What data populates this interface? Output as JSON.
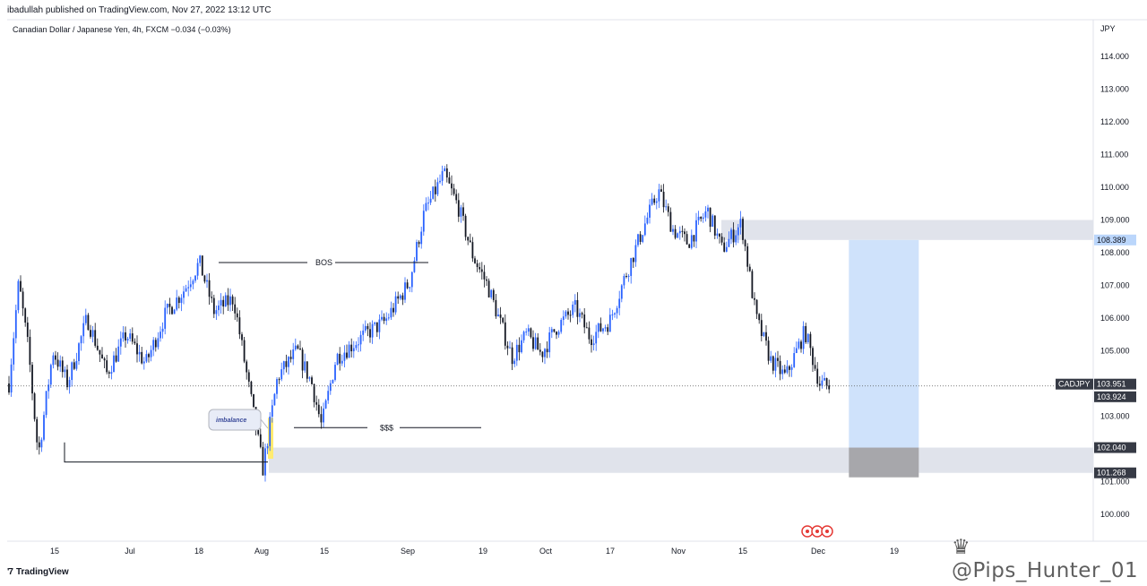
{
  "header": {
    "published": "ibadullah published on TradingView.com, Nov 27, 2022 13:12 UTC",
    "symbol": "Canadian Dollar / Japanese Yen, 4h, FXCM",
    "change": "−0.034 (−0.03%)"
  },
  "footer": {
    "brand": "TradingView",
    "logo": "'7"
  },
  "watermark": "♛ @Pips_Hunter_01",
  "colors": {
    "candle": "#2962ff",
    "candle_down": "#131722",
    "zone": "#e0e3eb",
    "target_box": "#cfe2fb",
    "stop_box": "#a7a7ab",
    "imbalance": "#ffeb70",
    "tag_dark": "#363a45",
    "tag_blue": "#bbd6fb"
  },
  "chart_data": {
    "type": "candlestick",
    "currency_label": "JPY",
    "y_ticks": [
      "114.000",
      "113.000",
      "112.000",
      "111.000",
      "110.000",
      "109.000",
      "108.000",
      "107.000",
      "106.000",
      "105.000",
      "104.000",
      "103.000",
      "102.000",
      "101.000",
      "100.000"
    ],
    "x_ticks": [
      "15",
      "Jul",
      "18",
      "Aug",
      "15",
      "Sep",
      "19",
      "Oct",
      "17",
      "Nov",
      "15",
      "Dec",
      "19"
    ],
    "ylim": [
      99.5,
      114.8
    ],
    "price_path": [
      [
        "Jun 10",
        104.0
      ],
      [
        "Jun 12",
        107.1
      ],
      [
        "Jun 14",
        105.0
      ],
      [
        "Jun 16",
        101.8
      ],
      [
        "Jun 19",
        105.0
      ],
      [
        "Jun 22",
        104.0
      ],
      [
        "Jun 26",
        106.0
      ],
      [
        "Jun 30",
        104.3
      ],
      [
        "Jul 4",
        105.5
      ],
      [
        "Jul 8",
        104.6
      ],
      [
        "Jul 12",
        106.1
      ],
      [
        "Jul 16",
        106.9
      ],
      [
        "Jul 19",
        107.7
      ],
      [
        "Jul 22",
        106.2
      ],
      [
        "Jul 26",
        106.6
      ],
      [
        "Jul 29",
        104.0
      ],
      [
        "Aug 1",
        101.4
      ],
      [
        "Aug 4",
        104.2
      ],
      [
        "Aug 8",
        105.0
      ],
      [
        "Aug 11",
        104.0
      ],
      [
        "Aug 13",
        102.7
      ],
      [
        "Aug 16",
        104.8
      ],
      [
        "Aug 22",
        105.5
      ],
      [
        "Aug 26",
        105.9
      ],
      [
        "Aug 31",
        107.1
      ],
      [
        "Sep 3",
        109.2
      ],
      [
        "Sep 7",
        110.4
      ],
      [
        "Sep 10",
        109.4
      ],
      [
        "Sep 13",
        107.9
      ],
      [
        "Sep 16",
        107.0
      ],
      [
        "Sep 21",
        104.8
      ],
      [
        "Sep 24",
        105.5
      ],
      [
        "Sep 27",
        104.9
      ],
      [
        "Sep 30",
        105.7
      ],
      [
        "Oct 4",
        106.3
      ],
      [
        "Oct 7",
        105.4
      ],
      [
        "Oct 11",
        105.9
      ],
      [
        "Oct 14",
        107.2
      ],
      [
        "Oct 18",
        108.8
      ],
      [
        "Oct 21",
        109.9
      ],
      [
        "Oct 24",
        108.7
      ],
      [
        "Oct 27",
        108.3
      ],
      [
        "Oct 31",
        109.3
      ],
      [
        "Nov 3",
        108.1
      ],
      [
        "Nov 7",
        108.9
      ],
      [
        "Nov 10",
        106.0
      ],
      [
        "Nov 13",
        104.7
      ],
      [
        "Nov 16",
        104.2
      ],
      [
        "Nov 20",
        105.6
      ],
      [
        "Nov 23",
        104.0
      ],
      [
        "Nov 25",
        103.9
      ]
    ],
    "annotations": {
      "bos": "BOS",
      "sss": "$$$",
      "imbalance": "imbalance"
    },
    "levels": {
      "bos_level": 107.7,
      "sss_level": 102.65,
      "low_line": 101.6,
      "current_price": 103.924
    },
    "zones": {
      "upper": [
        108.389,
        109.0
      ],
      "lower": [
        101.268,
        102.04
      ]
    },
    "position": {
      "type": "short",
      "entry": 102.04,
      "target": 108.389,
      "stop": 101.268,
      "start": "Dec 1",
      "end": "Dec 19"
    },
    "price_tags": {
      "ticker": "CADJPY",
      "last": "103.951",
      "current": "103.924",
      "target": "108.389",
      "entry": "102.040",
      "stop": "101.268"
    }
  }
}
